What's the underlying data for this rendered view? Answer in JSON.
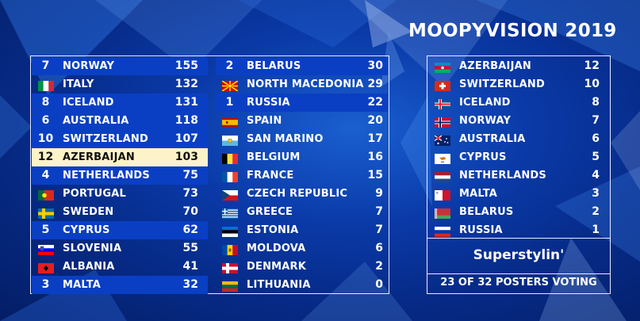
{
  "header": {
    "title": "MOOPYVISION 2019"
  },
  "colors": {
    "highlight_row": "#0a3fc4",
    "selected_row": "#fdf3c9",
    "panel_border": "#e6ecff"
  },
  "scoreboard": {
    "left_column": [
      {
        "points": "7",
        "country": "NORWAY",
        "score": "155",
        "flag": "norway-flag",
        "state": "highlight"
      },
      {
        "points": "",
        "country": "ITALY",
        "score": "132",
        "flag": "italy-flag",
        "state": ""
      },
      {
        "points": "8",
        "country": "ICELAND",
        "score": "131",
        "flag": "iceland-flag",
        "state": "highlight"
      },
      {
        "points": "6",
        "country": "AUSTRALIA",
        "score": "118",
        "flag": "australia-flag",
        "state": "highlight"
      },
      {
        "points": "10",
        "country": "SWITZERLAND",
        "score": "107",
        "flag": "switzerland-flag",
        "state": "highlight"
      },
      {
        "points": "12",
        "country": "AZERBAIJAN",
        "score": "103",
        "flag": "azerbaijan-flag",
        "state": "selected"
      },
      {
        "points": "4",
        "country": "NETHERLANDS",
        "score": "75",
        "flag": "netherlands-flag",
        "state": "highlight"
      },
      {
        "points": "",
        "country": "PORTUGAL",
        "score": "73",
        "flag": "portugal-flag",
        "state": ""
      },
      {
        "points": "",
        "country": "SWEDEN",
        "score": "70",
        "flag": "sweden-flag",
        "state": ""
      },
      {
        "points": "5",
        "country": "CYPRUS",
        "score": "62",
        "flag": "cyprus-flag",
        "state": "highlight"
      },
      {
        "points": "",
        "country": "SLOVENIA",
        "score": "55",
        "flag": "slovenia-flag",
        "state": ""
      },
      {
        "points": "",
        "country": "ALBANIA",
        "score": "41",
        "flag": "albania-flag",
        "state": ""
      },
      {
        "points": "3",
        "country": "MALTA",
        "score": "32",
        "flag": "malta-flag",
        "state": "highlight"
      }
    ],
    "middle_column": [
      {
        "points": "2",
        "country": "BELARUS",
        "score": "30",
        "flag": "belarus-flag",
        "state": "highlight"
      },
      {
        "points": "",
        "country": "NORTH MACEDONIA",
        "score": "29",
        "flag": "north-macedonia-flag",
        "state": ""
      },
      {
        "points": "1",
        "country": "RUSSIA",
        "score": "22",
        "flag": "russia-flag",
        "state": "highlight"
      },
      {
        "points": "",
        "country": "SPAIN",
        "score": "20",
        "flag": "spain-flag",
        "state": ""
      },
      {
        "points": "",
        "country": "SAN MARINO",
        "score": "17",
        "flag": "san-marino-flag",
        "state": ""
      },
      {
        "points": "",
        "country": "BELGIUM",
        "score": "16",
        "flag": "belgium-flag",
        "state": ""
      },
      {
        "points": "",
        "country": "FRANCE",
        "score": "15",
        "flag": "france-flag",
        "state": ""
      },
      {
        "points": "",
        "country": "CZECH REPUBLIC",
        "score": "9",
        "flag": "czech-republic-flag",
        "state": ""
      },
      {
        "points": "",
        "country": "GREECE",
        "score": "7",
        "flag": "greece-flag",
        "state": ""
      },
      {
        "points": "",
        "country": "ESTONIA",
        "score": "7",
        "flag": "estonia-flag",
        "state": ""
      },
      {
        "points": "",
        "country": "MOLDOVA",
        "score": "6",
        "flag": "moldova-flag",
        "state": ""
      },
      {
        "points": "",
        "country": "DENMARK",
        "score": "2",
        "flag": "denmark-flag",
        "state": ""
      },
      {
        "points": "",
        "country": "LITHUANIA",
        "score": "0",
        "flag": "lithuania-flag",
        "state": ""
      }
    ]
  },
  "voting_panel": {
    "entries": [
      {
        "country": "AZERBAIJAN",
        "points": "12",
        "flag": "azerbaijan-flag"
      },
      {
        "country": "SWITZERLAND",
        "points": "10",
        "flag": "switzerland-flag"
      },
      {
        "country": "ICELAND",
        "points": "8",
        "flag": "iceland-flag"
      },
      {
        "country": "NORWAY",
        "points": "7",
        "flag": "norway-flag"
      },
      {
        "country": "AUSTRALIA",
        "points": "6",
        "flag": "australia-flag"
      },
      {
        "country": "CYPRUS",
        "points": "5",
        "flag": "cyprus-flag"
      },
      {
        "country": "NETHERLANDS",
        "points": "4",
        "flag": "netherlands-flag"
      },
      {
        "country": "MALTA",
        "points": "3",
        "flag": "malta-flag"
      },
      {
        "country": "BELARUS",
        "points": "2",
        "flag": "belarus-flag"
      },
      {
        "country": "RUSSIA",
        "points": "1",
        "flag": "russia-flag"
      }
    ],
    "voter_name": "Superstylin'",
    "voting_status": "23 OF 32 POSTERS VOTING"
  }
}
